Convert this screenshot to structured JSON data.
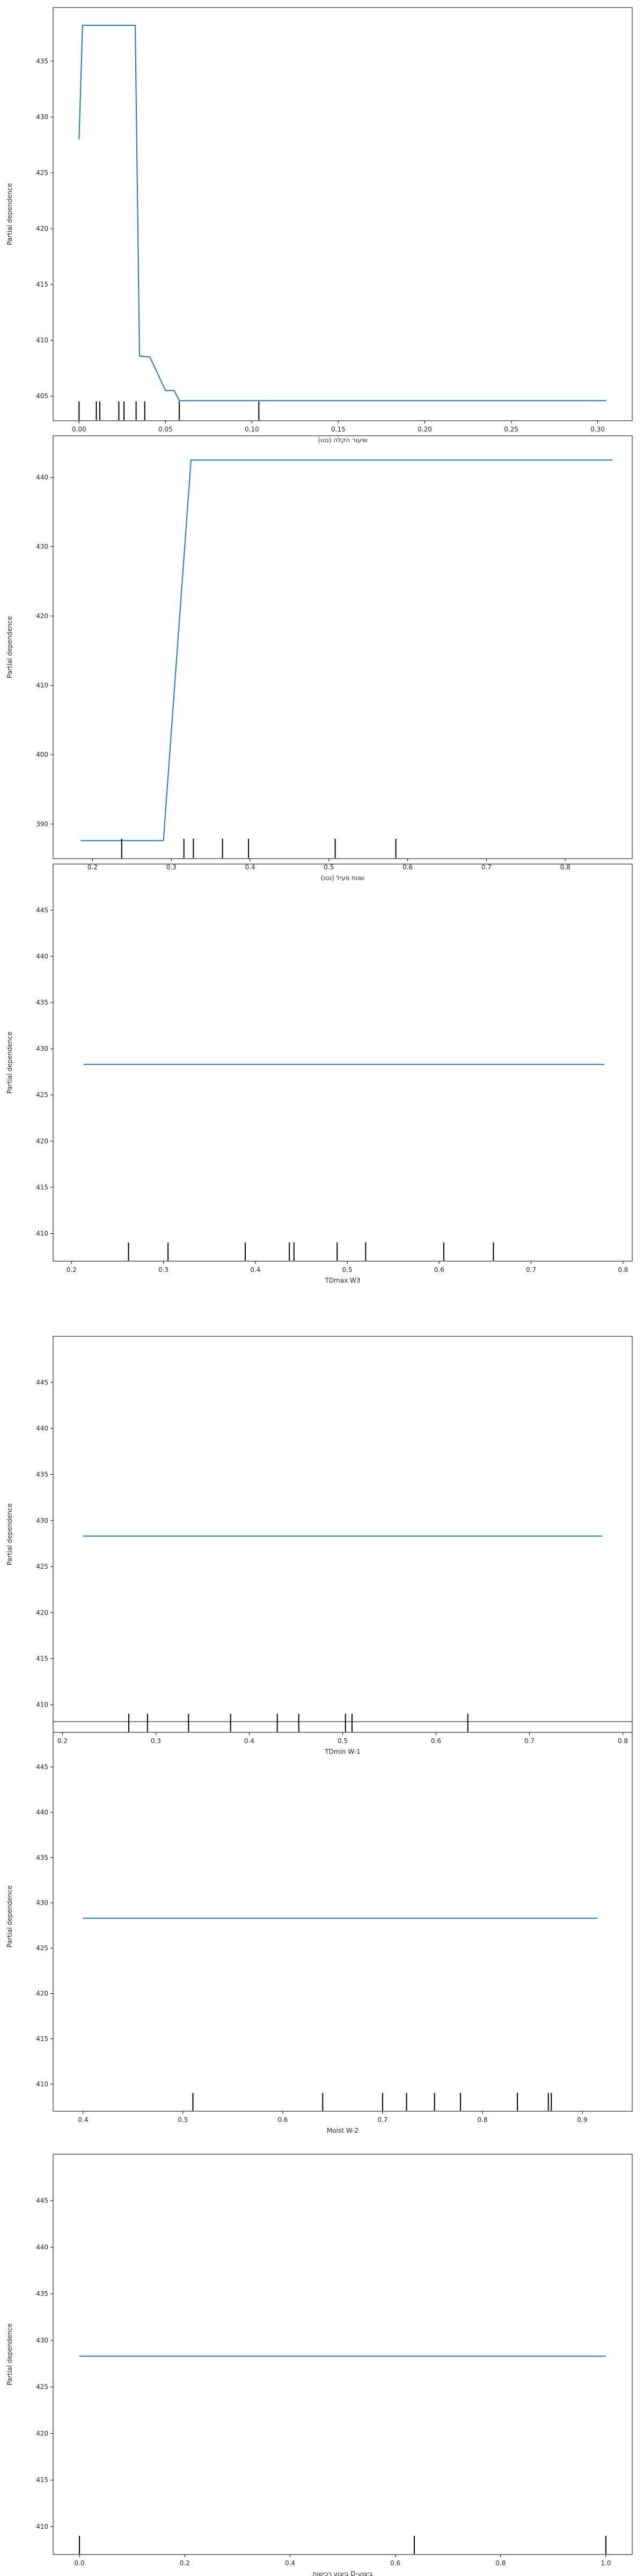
{
  "chart_data": [
    {
      "type": "line",
      "xlabel": "שיעור הקלה (נטו)",
      "ylabel": "Partial dependence",
      "xlim": [
        -0.015,
        0.32
      ],
      "ylim": [
        402.8,
        439.8
      ],
      "xticks": [
        0.0,
        0.05,
        0.1,
        0.15,
        0.2,
        0.25,
        0.3
      ],
      "xtick_labels": [
        "0.00",
        "0.05",
        "0.10",
        "0.15",
        "0.20",
        "0.25",
        "0.30"
      ],
      "yticks": [
        405,
        410,
        415,
        420,
        425,
        430,
        435
      ],
      "ytick_labels": [
        "405",
        "410",
        "415",
        "420",
        "425",
        "430",
        "435"
      ],
      "line_color": "#1f77b4",
      "series": [
        {
          "x": [
            0.0,
            0.002,
            0.0325,
            0.035,
            0.041,
            0.05,
            0.055,
            0.058,
            0.305
          ],
          "y": [
            428.0,
            438.2,
            438.2,
            408.6,
            408.5,
            405.5,
            405.5,
            404.6,
            404.6
          ]
        }
      ],
      "rug": [
        0.0,
        0.01,
        0.012,
        0.023,
        0.026,
        0.033,
        0.038,
        0.058,
        0.104
      ]
    },
    {
      "type": "line",
      "xlabel": "שטח פעיל (נטו)",
      "ylabel": "Partial dependence",
      "xlim": [
        0.15,
        0.885
      ],
      "ylim": [
        385.0,
        446.0
      ],
      "xticks": [
        0.2,
        0.3,
        0.4,
        0.5,
        0.6,
        0.7,
        0.8
      ],
      "xtick_labels": [
        "0.2",
        "0.3",
        "0.4",
        "0.5",
        "0.6",
        "0.7",
        "0.8"
      ],
      "yticks": [
        390,
        400,
        410,
        420,
        430,
        440
      ],
      "ytick_labels": [
        "390",
        "400",
        "410",
        "420",
        "430",
        "440"
      ],
      "line_color": "#1f77b4",
      "series": [
        {
          "x": [
            0.185,
            0.29,
            0.325,
            0.86
          ],
          "y": [
            387.6,
            387.6,
            442.5,
            442.5
          ]
        }
      ],
      "rug": [
        0.237,
        0.316,
        0.328,
        0.365,
        0.398,
        0.508,
        0.585
      ]
    },
    {
      "type": "line",
      "xlabel": "TDmax W3",
      "ylabel": "Partial dependence",
      "xlim": [
        0.18,
        0.81
      ],
      "ylim": [
        407.0,
        450.0
      ],
      "xticks": [
        0.2,
        0.3,
        0.4,
        0.5,
        0.6,
        0.7,
        0.8
      ],
      "xtick_labels": [
        "0.2",
        "0.3",
        "0.4",
        "0.5",
        "0.6",
        "0.7",
        "0.8"
      ],
      "yticks": [
        410,
        415,
        420,
        425,
        430,
        435,
        440,
        445
      ],
      "ytick_labels": [
        "410",
        "415",
        "420",
        "425",
        "430",
        "435",
        "440",
        "445"
      ],
      "line_color": "#1f77b4",
      "series": [
        {
          "x": [
            0.213,
            0.78
          ],
          "y": [
            428.3,
            428.3
          ]
        }
      ],
      "rug": [
        0.262,
        0.305,
        0.389,
        0.437,
        0.442,
        0.489,
        0.52,
        0.605,
        0.659
      ]
    },
    {
      "type": "line",
      "xlabel": "TDmin W-1",
      "ylabel": "Partial dependence",
      "xlim": [
        0.19,
        0.81
      ],
      "ylim": [
        407.0,
        450.0
      ],
      "xticks": [
        0.2,
        0.3,
        0.4,
        0.5,
        0.6,
        0.7,
        0.8
      ],
      "xtick_labels": [
        "0.2",
        "0.3",
        "0.4",
        "0.5",
        "0.6",
        "0.7",
        "0.8"
      ],
      "yticks": [
        410,
        415,
        420,
        425,
        430,
        435,
        440,
        445
      ],
      "ytick_labels": [
        "410",
        "415",
        "420",
        "425",
        "430",
        "435",
        "440",
        "445"
      ],
      "line_color": "#1f77b4",
      "series": [
        {
          "x": [
            0.222,
            0.778
          ],
          "y": [
            428.3,
            428.3
          ]
        }
      ],
      "rug": [
        0.271,
        0.291,
        0.335,
        0.38,
        0.43,
        0.453,
        0.503,
        0.51,
        0.634
      ]
    },
    {
      "type": "line",
      "xlabel": "Moist W-2",
      "ylabel": "Partial dependence",
      "xlim": [
        0.37,
        0.95
      ],
      "ylim": [
        407.0,
        450.0
      ],
      "xticks": [
        0.4,
        0.5,
        0.6,
        0.7,
        0.8,
        0.9
      ],
      "xtick_labels": [
        "0.4",
        "0.5",
        "0.6",
        "0.7",
        "0.8",
        "0.9"
      ],
      "yticks": [
        410,
        415,
        420,
        425,
        430,
        435,
        440,
        445
      ],
      "ytick_labels": [
        "410",
        "415",
        "420",
        "425",
        "430",
        "435",
        "440",
        "445"
      ],
      "line_color": "#1f77b4",
      "series": [
        {
          "x": [
            0.4,
            0.915
          ],
          "y": [
            428.3,
            428.3
          ]
        }
      ],
      "rug": [
        0.51,
        0.64,
        0.7,
        0.724,
        0.752,
        0.778,
        0.835,
        0.866,
        0.869
      ]
    },
    {
      "type": "line",
      "xlabel": "ביצוע רכישות D-ביצוע",
      "ylabel": "Partial dependence",
      "xlim": [
        -0.05,
        1.05
      ],
      "ylim": [
        407.0,
        450.0
      ],
      "xticks": [
        0.0,
        0.2,
        0.4,
        0.6,
        0.8,
        1.0
      ],
      "xtick_labels": [
        "0.0",
        "0.2",
        "0.4",
        "0.6",
        "0.8",
        "1.0"
      ],
      "yticks": [
        410,
        415,
        420,
        425,
        430,
        435,
        440,
        445
      ],
      "ytick_labels": [
        "410",
        "415",
        "420",
        "425",
        "430",
        "435",
        "440",
        "445"
      ],
      "line_color": "#1f77b4",
      "series": [
        {
          "x": [
            0.0,
            1.0
          ],
          "y": [
            428.3,
            428.3
          ]
        }
      ],
      "rug": [
        0.0,
        0.636,
        1.0
      ]
    }
  ]
}
